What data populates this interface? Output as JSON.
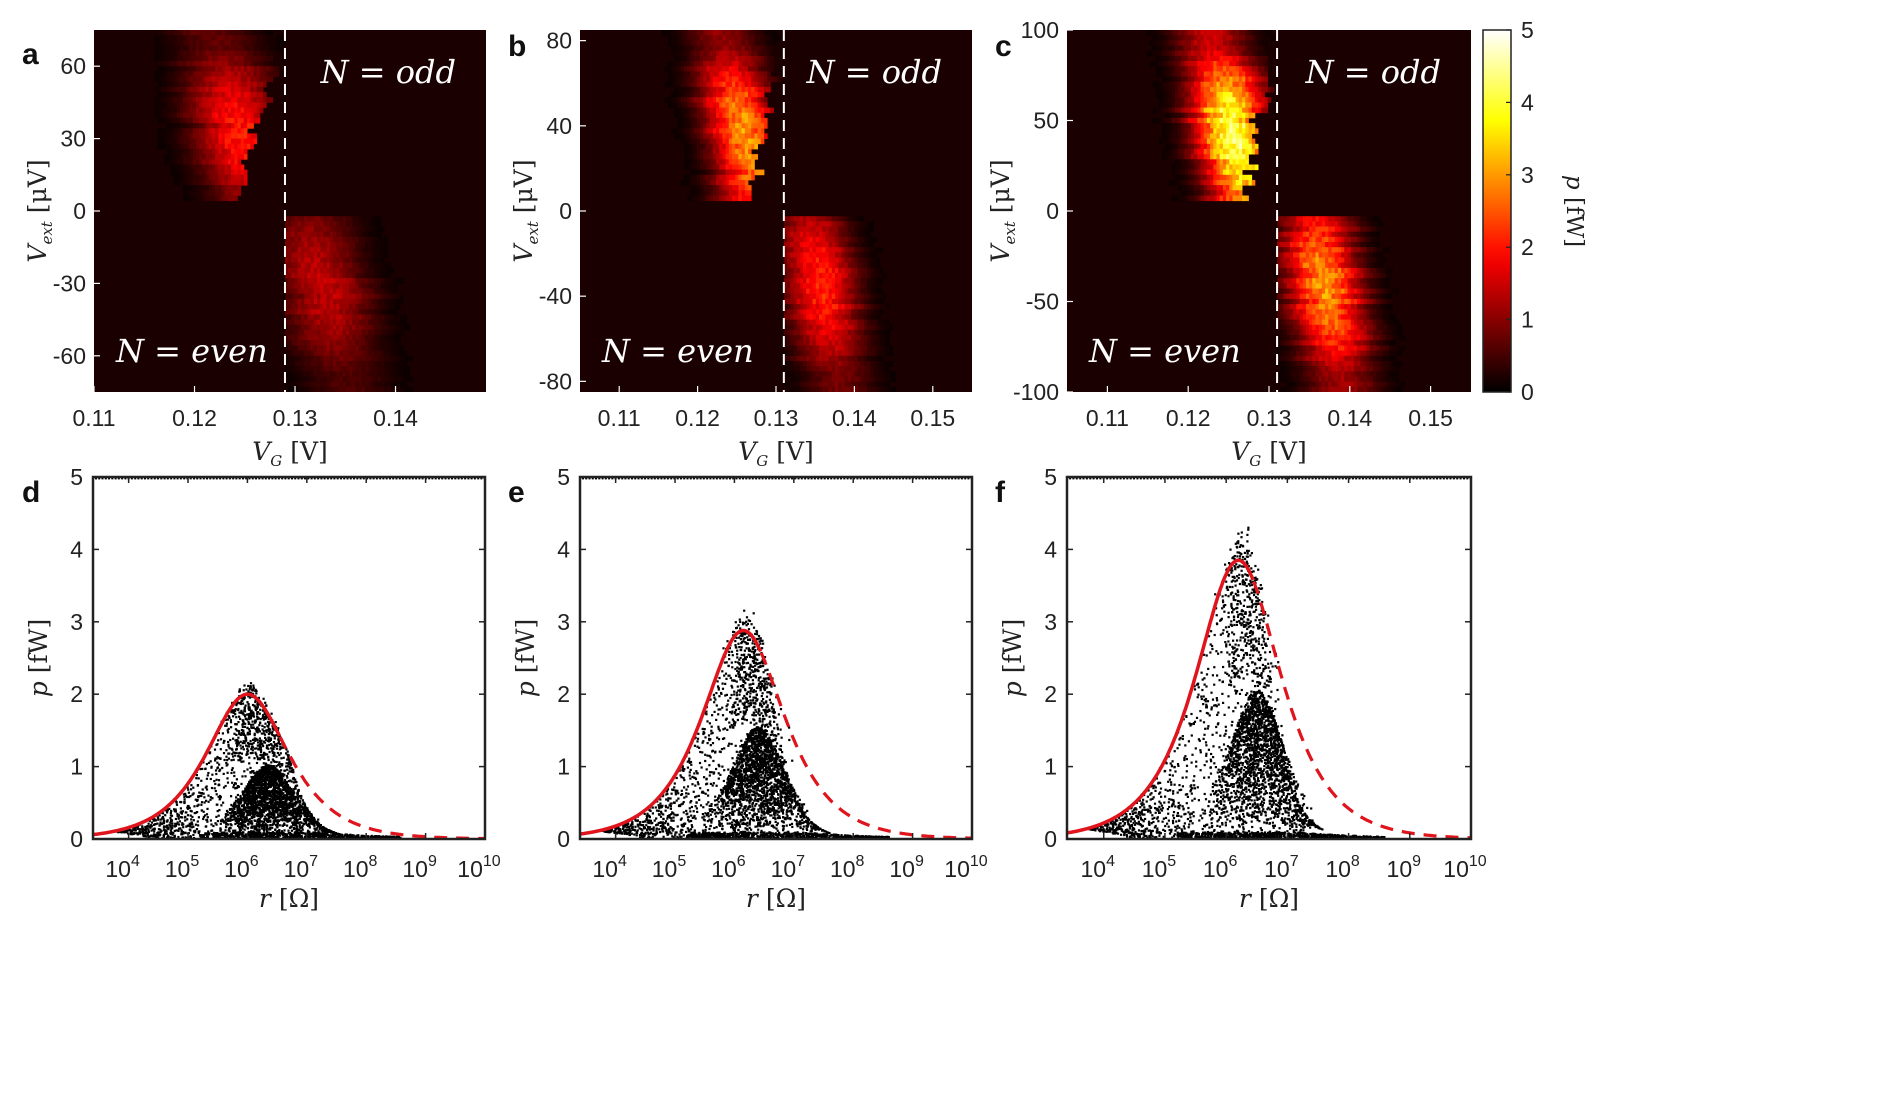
{
  "figure_title": "",
  "colors": {
    "fit_line": "#e0141c",
    "scatter": "#000000",
    "heatmap_bg": "#1a0000"
  },
  "chart_data": [
    {
      "panel": "a",
      "type": "heatmap",
      "xlabel_sym": "V",
      "xlabel_sub": "G",
      "xlabel_unit": "[V]",
      "ylabel_sym": "V",
      "ylabel_sub": "ext",
      "ylabel_unit": "[μV]",
      "xlim": [
        0.11,
        0.149
      ],
      "ylim": [
        -75,
        75
      ],
      "xticks": [
        0.11,
        0.12,
        0.13,
        0.14
      ],
      "xtick_labels": [
        "0.11",
        "0.12",
        "0.13",
        "0.14"
      ],
      "yticks": [
        60,
        30,
        0,
        -30,
        -60
      ],
      "ytick_labels": [
        "60",
        "30",
        "0",
        "-30",
        "-60"
      ],
      "degeneracy_vg": 0.129,
      "annotations": {
        "top_right": "N = odd",
        "bottom_left": "N = even"
      },
      "peak_power_fW": 2.0,
      "upper_region": {
        "vg_from": 0.116,
        "vg_to": 0.129,
        "ridge_vg": 0.124,
        "ext_from": 5,
        "ext_to": 75
      },
      "lower_region": {
        "vg_from": 0.129,
        "vg_to": 0.139,
        "ridge_vg": 0.133,
        "ext_from": -75,
        "ext_to": -2
      },
      "colorbar": null
    },
    {
      "panel": "b",
      "type": "heatmap",
      "xlabel_sym": "V",
      "xlabel_sub": "G",
      "xlabel_unit": "[V]",
      "ylabel_sym": "V",
      "ylabel_sub": "ext",
      "ylabel_unit": "[μV]",
      "xlim": [
        0.105,
        0.155
      ],
      "ylim": [
        -85,
        85
      ],
      "xticks": [
        0.11,
        0.12,
        0.13,
        0.14,
        0.15
      ],
      "xtick_labels": [
        "0.11",
        "0.12",
        "0.13",
        "0.14",
        "0.15"
      ],
      "yticks": [
        80,
        40,
        0,
        -40,
        -80
      ],
      "ytick_labels": [
        "80",
        "40",
        "0",
        "-40",
        "-80"
      ],
      "degeneracy_vg": 0.131,
      "annotations": {
        "top_right": "N = odd",
        "bottom_left": "N = even"
      },
      "peak_power_fW": 3.0,
      "upper_region": {
        "vg_from": 0.115,
        "vg_to": 0.131,
        "ridge_vg": 0.125,
        "ext_from": 5,
        "ext_to": 85
      },
      "lower_region": {
        "vg_from": 0.131,
        "vg_to": 0.143,
        "ridge_vg": 0.136,
        "ext_from": -85,
        "ext_to": -2
      },
      "colorbar": null
    },
    {
      "panel": "c",
      "type": "heatmap",
      "xlabel_sym": "V",
      "xlabel_sub": "G",
      "xlabel_unit": "[V]",
      "ylabel_sym": "V",
      "ylabel_sub": "ext",
      "ylabel_unit": "[μV]",
      "xlim": [
        0.105,
        0.155
      ],
      "ylim": [
        -100,
        100
      ],
      "xticks": [
        0.11,
        0.12,
        0.13,
        0.14,
        0.15
      ],
      "xtick_labels": [
        "0.11",
        "0.12",
        "0.13",
        "0.14",
        "0.15"
      ],
      "yticks": [
        100,
        50,
        0,
        -50,
        -100
      ],
      "ytick_labels": [
        "100",
        "50",
        "0",
        "-50",
        "-100"
      ],
      "degeneracy_vg": 0.131,
      "annotations": {
        "top_right": "N = odd",
        "bottom_left": "N = even"
      },
      "peak_power_fW": 4.2,
      "upper_region": {
        "vg_from": 0.114,
        "vg_to": 0.131,
        "ridge_vg": 0.125,
        "ext_from": 5,
        "ext_to": 100
      },
      "lower_region": {
        "vg_from": 0.131,
        "vg_to": 0.144,
        "ridge_vg": 0.137,
        "ext_from": -100,
        "ext_to": -2
      },
      "colorbar": {
        "label_sym": "p",
        "label_unit": "[fW]",
        "range": [
          0,
          5
        ],
        "ticks": [
          0,
          1,
          2,
          3,
          4,
          5
        ],
        "tick_labels": [
          "0",
          "1",
          "2",
          "3",
          "4",
          "5"
        ],
        "colormap": "hot"
      }
    },
    {
      "panel": "d",
      "type": "scatter",
      "xscale": "log",
      "xlim_log10": [
        3.4,
        10
      ],
      "ylim": [
        0,
        5
      ],
      "xtick_exponents": [
        4,
        5,
        6,
        7,
        8,
        9,
        10
      ],
      "xtick_base": "10",
      "yticks": [
        0,
        1,
        2,
        3,
        4,
        5
      ],
      "ytick_labels": [
        "0",
        "1",
        "2",
        "3",
        "4",
        "5"
      ],
      "xlabel_sym": "r",
      "xlabel_unit": "[Ω]",
      "ylabel_sym": "p",
      "ylabel_unit": "[fW]",
      "fit": {
        "peak_fW": 2.0,
        "peak_log10_r": 6.0,
        "width_decades": 0.62,
        "solid_until_log10_r": 6.55,
        "solid_style": "solid",
        "extrapolated_style": "dashed"
      },
      "scatter": {
        "max_fW": 2.08,
        "secondary_peak_fW": 1.02,
        "secondary_peak_log10_r": 6.35,
        "approx_points": 9000
      }
    },
    {
      "panel": "e",
      "type": "scatter",
      "xscale": "log",
      "xlim_log10": [
        3.4,
        10
      ],
      "ylim": [
        0,
        5
      ],
      "xtick_exponents": [
        4,
        5,
        6,
        7,
        8,
        9,
        10
      ],
      "xtick_base": "10",
      "yticks": [
        0,
        1,
        2,
        3,
        4,
        5
      ],
      "ytick_labels": [
        "0",
        "1",
        "2",
        "3",
        "4",
        "5"
      ],
      "xlabel_sym": "r",
      "xlabel_unit": "[Ω]",
      "ylabel_sym": "p",
      "ylabel_unit": "[fW]",
      "fit": {
        "peak_fW": 2.88,
        "peak_log10_r": 6.15,
        "width_decades": 0.62,
        "solid_until_log10_r": 6.45,
        "solid_style": "solid",
        "extrapolated_style": "dashed"
      },
      "scatter": {
        "max_fW": 3.12,
        "secondary_peak_fW": 1.55,
        "secondary_peak_log10_r": 6.4,
        "approx_points": 9000
      }
    },
    {
      "panel": "f",
      "type": "scatter",
      "xscale": "log",
      "xlim_log10": [
        3.4,
        10
      ],
      "ylim": [
        0,
        5
      ],
      "xtick_exponents": [
        4,
        5,
        6,
        7,
        8,
        9,
        10
      ],
      "xtick_base": "10",
      "yticks": [
        0,
        1,
        2,
        3,
        4,
        5
      ],
      "ytick_labels": [
        "0",
        "1",
        "2",
        "3",
        "4",
        "5"
      ],
      "xlabel_sym": "r",
      "xlabel_unit": "[Ω]",
      "ylabel_sym": "p",
      "ylabel_unit": "[fW]",
      "fit": {
        "peak_fW": 3.85,
        "peak_log10_r": 6.2,
        "width_decades": 0.62,
        "solid_until_log10_r": 6.45,
        "solid_style": "solid",
        "extrapolated_style": "dashed"
      },
      "scatter": {
        "max_fW": 4.3,
        "secondary_peak_fW": 2.05,
        "secondary_peak_log10_r": 6.5,
        "approx_points": 9000
      }
    }
  ]
}
